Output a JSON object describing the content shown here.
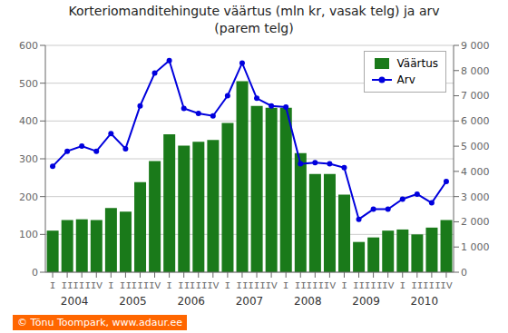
{
  "chart_data": {
    "type": "bar",
    "title": "Korteriomanditehingute väärtus (mln kr, vasak telg) ja arv\n(parem telg)",
    "categories": [
      "I",
      "II",
      "III",
      "IV",
      "I",
      "II",
      "III",
      "IV",
      "I",
      "II",
      "III",
      "IV",
      "I",
      "II",
      "III",
      "IV",
      "I",
      "II",
      "III",
      "IV",
      "I",
      "II",
      "III",
      "IV",
      "I",
      "II",
      "III",
      "IV"
    ],
    "series": [
      {
        "name": "Väärtus",
        "type": "bar",
        "color": "#1a7a1a",
        "values": [
          110,
          138,
          140,
          138,
          170,
          160,
          238,
          294,
          365,
          335,
          345,
          350,
          395,
          505,
          440,
          435,
          435,
          315,
          260,
          260,
          205,
          80,
          92,
          110,
          113,
          100,
          118,
          138
        ]
      },
      {
        "name": "Arv",
        "type": "line",
        "axis": "y2",
        "color": "#0000dd",
        "marker": "circle",
        "values": [
          4200,
          4800,
          5000,
          4800,
          5500,
          4900,
          6600,
          7900,
          8400,
          6500,
          6300,
          6200,
          7000,
          8300,
          6900,
          6600,
          6550,
          4300,
          4350,
          4300,
          4150,
          2100,
          2500,
          2500,
          2900,
          3100,
          2750,
          3600
        ]
      }
    ],
    "ylim": [
      0,
      600
    ],
    "yticks": [
      0,
      100,
      200,
      300,
      400,
      500,
      600
    ],
    "y2lim": [
      0,
      9000
    ],
    "y2ticks": [
      0,
      {
        "value": 1000,
        "label": "1 000"
      },
      {
        "value": 2000,
        "label": "2 000"
      },
      {
        "value": 3000,
        "label": "3 000"
      },
      {
        "value": 4000,
        "label": "4 000"
      },
      {
        "value": 5000,
        "label": "5 000"
      },
      {
        "value": 6000,
        "label": "6 000"
      },
      {
        "value": 7000,
        "label": "7 000"
      },
      {
        "value": 8000,
        "label": "8 000"
      },
      {
        "value": 9000,
        "label": "9 000"
      }
    ],
    "annotations": [
      "2004",
      "2005",
      "2006",
      "2007",
      "2008",
      "2009",
      "2010",
      "© Tõnu Toompark, www.adaur.ee"
    ],
    "grid": true,
    "legend": "upper right"
  }
}
